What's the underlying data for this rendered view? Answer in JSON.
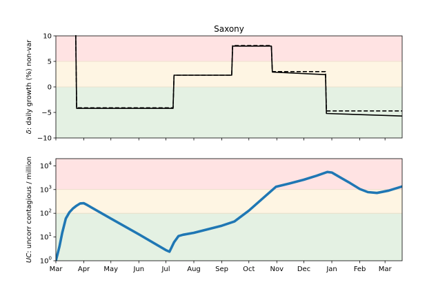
{
  "chart_data": [
    {
      "type": "line",
      "title": "Saxony",
      "ylabel_prefix": "δ",
      "ylabel_rest": ": daily growth (%) non-var",
      "ylim": [
        -10,
        10
      ],
      "yticks": [
        {
          "value": 10,
          "label": "10"
        },
        {
          "value": 5,
          "label": "5"
        },
        {
          "value": 0,
          "label": "0"
        },
        {
          "value": -5,
          "label": "−5"
        },
        {
          "value": -10,
          "label": "−10"
        }
      ],
      "xlim": [
        "2020-03-01",
        "2021-03-20"
      ],
      "bands": [
        {
          "from": 5,
          "to": 10,
          "color": "#ffe3e3"
        },
        {
          "from": 0,
          "to": 5,
          "color": "#fef5e3"
        },
        {
          "from": -10,
          "to": 0,
          "color": "#e4f1e3"
        }
      ],
      "band_lines": [
        5,
        0
      ],
      "band_line_color": "#e8dcc4",
      "series": [
        {
          "style": "solid",
          "color": "#000000",
          "points": [
            [
              "2020-03-23",
              10.5
            ],
            [
              "2020-03-24",
              -4.2
            ],
            [
              "2020-07-09",
              -4.2
            ],
            [
              "2020-07-10",
              2.3
            ],
            [
              "2020-09-12",
              2.3
            ],
            [
              "2020-09-13",
              8.0
            ],
            [
              "2020-10-26",
              8.0
            ],
            [
              "2020-10-27",
              2.9
            ],
            [
              "2020-12-25",
              2.4
            ],
            [
              "2020-12-26",
              -5.2
            ],
            [
              "2021-03-20",
              -5.7
            ]
          ]
        },
        {
          "style": "dashed",
          "color": "#000000",
          "points": [
            [
              "2020-03-23",
              10.5
            ],
            [
              "2020-03-24",
              -4.1
            ],
            [
              "2020-07-09",
              -4.1
            ],
            [
              "2020-07-10",
              2.3
            ],
            [
              "2020-09-12",
              2.3
            ],
            [
              "2020-09-13",
              8.1
            ],
            [
              "2020-10-26",
              8.1
            ],
            [
              "2020-10-27",
              3.0
            ],
            [
              "2020-12-25",
              3.0
            ],
            [
              "2020-12-26",
              -4.7
            ],
            [
              "2021-03-20",
              -4.7
            ]
          ]
        }
      ]
    },
    {
      "type": "line",
      "ylabel_prefix": "UC",
      "ylabel_rest": ": uncorr contagious / million",
      "yscale": "log",
      "ylim": [
        1,
        20000
      ],
      "yticks": [
        {
          "value": 1,
          "base": "10",
          "exp": "0"
        },
        {
          "value": 10,
          "base": "10",
          "exp": "1"
        },
        {
          "value": 100,
          "base": "10",
          "exp": "2"
        },
        {
          "value": 1000,
          "base": "10",
          "exp": "3"
        },
        {
          "value": 10000,
          "base": "10",
          "exp": "4"
        }
      ],
      "xlim": [
        "2020-03-01",
        "2021-03-20"
      ],
      "xticks": [
        {
          "date": "2020-03-01",
          "label": "Mar"
        },
        {
          "date": "2020-04-01",
          "label": "Apr"
        },
        {
          "date": "2020-05-01",
          "label": "May"
        },
        {
          "date": "2020-06-01",
          "label": "Jun"
        },
        {
          "date": "2020-07-01",
          "label": "Jul"
        },
        {
          "date": "2020-08-01",
          "label": "Aug"
        },
        {
          "date": "2020-09-01",
          "label": "Sep"
        },
        {
          "date": "2020-10-01",
          "label": "Oct"
        },
        {
          "date": "2020-11-01",
          "label": "Nov"
        },
        {
          "date": "2020-12-01",
          "label": "Dec"
        },
        {
          "date": "2021-01-01",
          "label": "Jan"
        },
        {
          "date": "2021-02-01",
          "label": "Feb"
        },
        {
          "date": "2021-03-01",
          "label": "Mar"
        }
      ],
      "bands": [
        {
          "from": 1000,
          "to": 20000,
          "color": "#ffe3e3"
        },
        {
          "from": 100,
          "to": 1000,
          "color": "#fef5e3"
        },
        {
          "from": 1,
          "to": 100,
          "color": "#e4f1e3"
        }
      ],
      "band_lines": [
        1000,
        100
      ],
      "band_line_color": "#e8dcc4",
      "series": [
        {
          "style": "solid",
          "color": "#1f77b4",
          "points": [
            [
              "2020-03-01",
              1.0
            ],
            [
              "2020-03-05",
              4
            ],
            [
              "2020-03-08",
              15
            ],
            [
              "2020-03-12",
              60
            ],
            [
              "2020-03-16",
              110
            ],
            [
              "2020-03-20",
              160
            ],
            [
              "2020-03-24",
              210
            ],
            [
              "2020-03-28",
              260
            ],
            [
              "2020-04-01",
              265
            ],
            [
              "2020-04-05",
              220
            ],
            [
              "2020-04-10",
              170
            ],
            [
              "2020-05-01",
              60
            ],
            [
              "2020-06-01",
              13
            ],
            [
              "2020-07-01",
              2.8
            ],
            [
              "2020-07-05",
              2.4
            ],
            [
              "2020-07-10",
              6
            ],
            [
              "2020-07-15",
              11
            ],
            [
              "2020-07-20",
              12.5
            ],
            [
              "2020-08-01",
              15
            ],
            [
              "2020-09-01",
              30
            ],
            [
              "2020-09-15",
              45
            ],
            [
              "2020-10-01",
              130
            ],
            [
              "2020-10-31",
              1300
            ],
            [
              "2020-11-15",
              1800
            ],
            [
              "2020-12-01",
              2600
            ],
            [
              "2020-12-15",
              3800
            ],
            [
              "2020-12-27",
              5500
            ],
            [
              "2021-01-01",
              5200
            ],
            [
              "2021-01-10",
              3300
            ],
            [
              "2021-01-20",
              2000
            ],
            [
              "2021-02-01",
              1050
            ],
            [
              "2021-02-10",
              780
            ],
            [
              "2021-02-20",
              720
            ],
            [
              "2021-03-05",
              900
            ],
            [
              "2021-03-20",
              1350
            ]
          ]
        }
      ]
    }
  ]
}
